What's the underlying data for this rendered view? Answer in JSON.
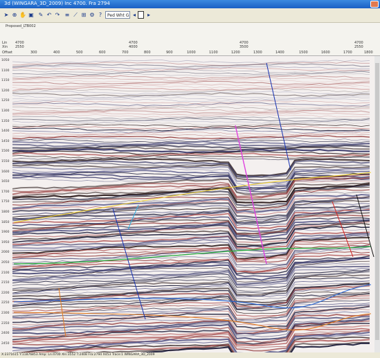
{
  "window": {
    "title": "3d (WINGARA_3D_2009) Inc 4700. Fra 2794",
    "accent": "#1a5fc4"
  },
  "toolbar": {
    "select_value": "Ped Wht Gray",
    "icons": [
      "pointer-icon",
      "zoom-icon",
      "hand-icon",
      "select-icon",
      "pick-icon",
      "undo-icon",
      "redo-icon",
      "horizon-icon",
      "fault-icon",
      "measure-icon",
      "settings-icon",
      "help-icon"
    ]
  },
  "ruler": {
    "well_label": "Proposed_LTB002",
    "row_labels": [
      "Lin",
      "Xin",
      "Offset"
    ],
    "top_values": [
      "4700",
      "2550",
      "4700",
      "4000",
      "4700",
      "3500",
      "4700",
      "2550"
    ],
    "ticks": [
      "300",
      "400",
      "500",
      "600",
      "700",
      "800",
      "900",
      "1000",
      "1100",
      "1200",
      "1300",
      "1400",
      "1500",
      "1600",
      "1700",
      "1800"
    ]
  },
  "time_axis": [
    "1050",
    "1100",
    "1150",
    "1200",
    "1250",
    "1300",
    "1350",
    "1400",
    "1450",
    "1500",
    "1550",
    "1600",
    "1650",
    "1700",
    "1750",
    "1800",
    "1850",
    "1900",
    "1950",
    "2000",
    "2050",
    "2100",
    "2150",
    "2200",
    "2250",
    "2300",
    "2350",
    "2400",
    "2450"
  ],
  "horizons": [
    {
      "color": "#f0d030"
    },
    {
      "color": "#2bb040"
    },
    {
      "color": "#e07b20"
    },
    {
      "color": "#2060d0"
    }
  ],
  "faults": [
    {
      "color": "#1530b0"
    },
    {
      "color": "#e040e0"
    },
    {
      "color": "#d02020"
    },
    {
      "color": "#101010"
    },
    {
      "color": "#30b0e0"
    }
  ],
  "status": "X:2371615  Y:11876853 Amp:   Ln:4700  Xln:3552   T:2408   Fra:2794 X453  Trace:1  WINGARA_3D_2009"
}
